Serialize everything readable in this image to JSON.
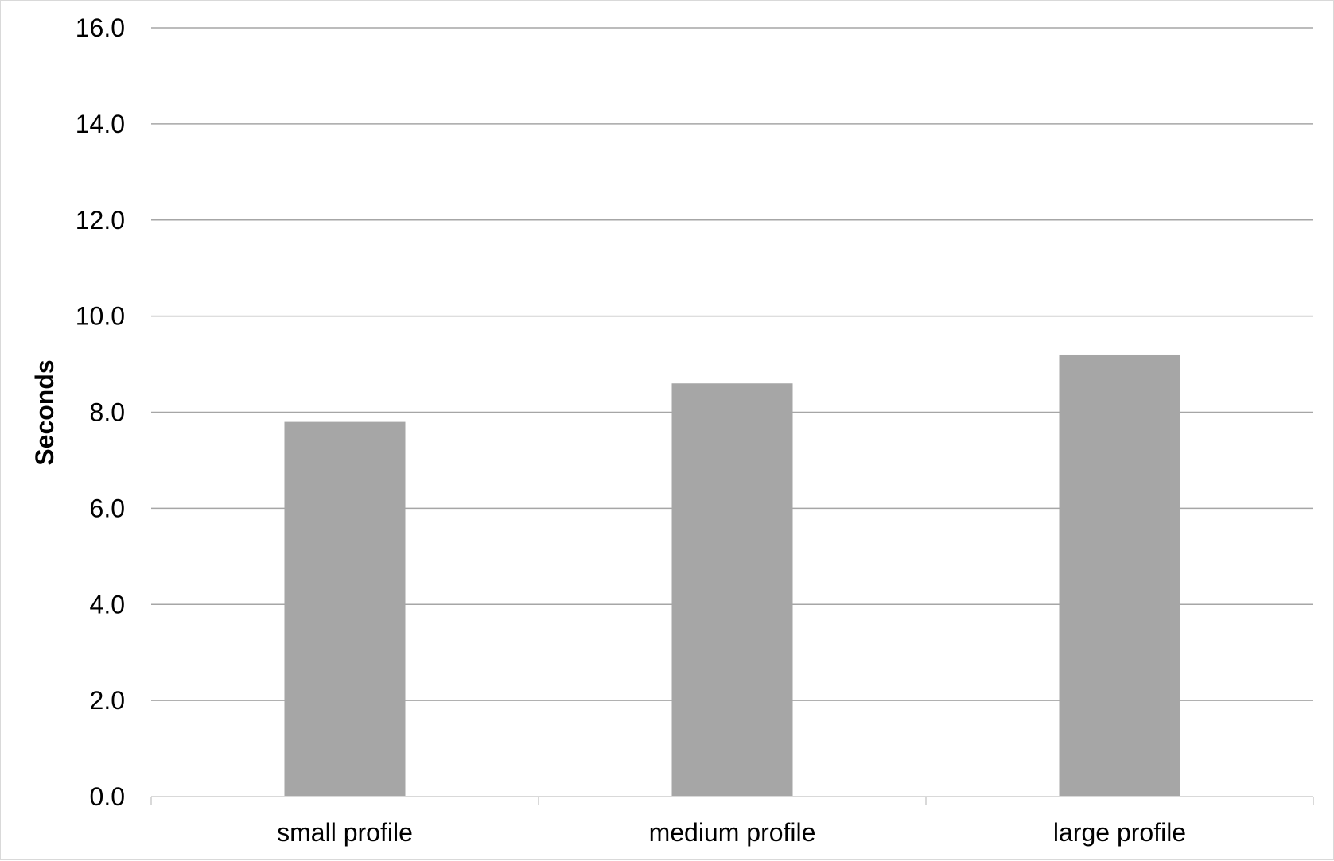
{
  "chart_data": {
    "type": "bar",
    "title": "",
    "xlabel": "",
    "ylabel": "Seconds",
    "categories": [
      "small profile",
      "medium profile",
      "large profile"
    ],
    "series": [
      {
        "values": [
          7.8,
          8.6,
          9.2
        ]
      }
    ],
    "ylim": [
      0,
      16
    ],
    "yticks": [
      "0.0",
      "2.0",
      "4.0",
      "6.0",
      "8.0",
      "10.0",
      "12.0",
      "14.0",
      "16.0"
    ],
    "grid": true,
    "legend": "none",
    "colors": {
      "bar": "#a6a6a6",
      "grid": "#a6a6a6",
      "axis": "#d9d9d9"
    }
  }
}
